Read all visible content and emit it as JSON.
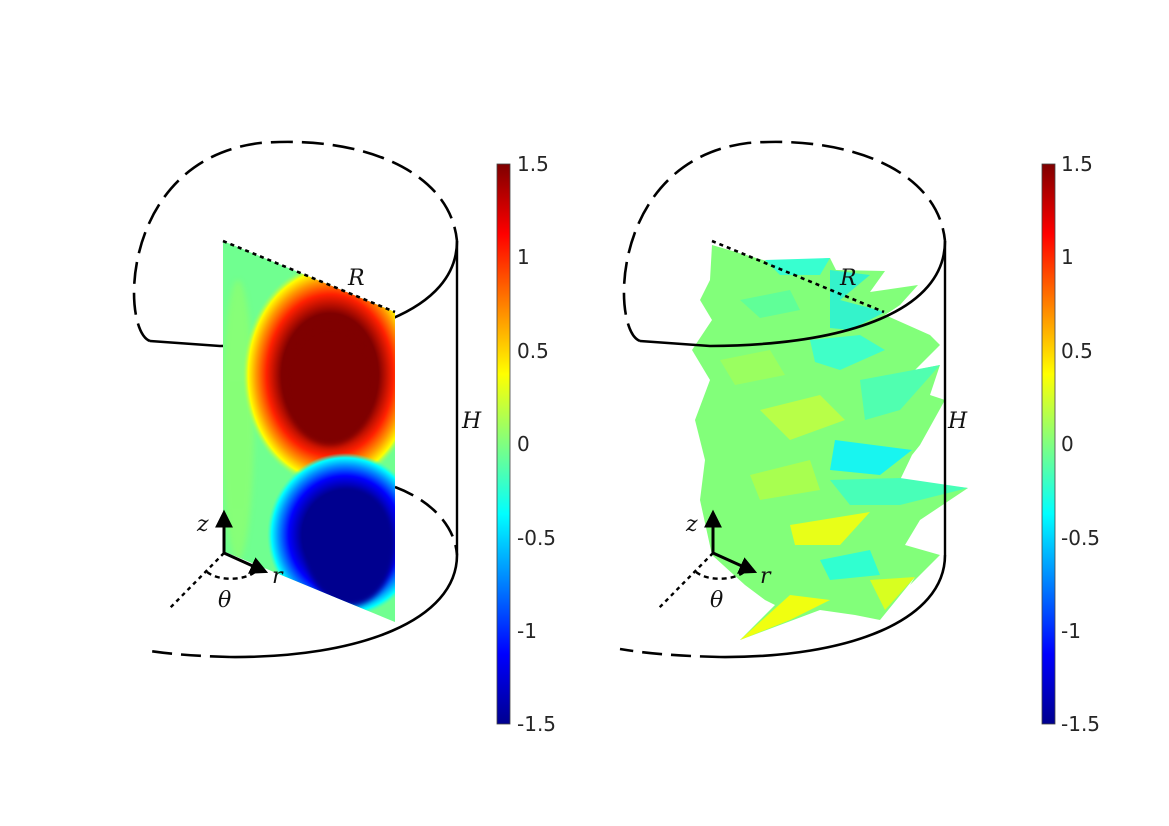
{
  "panels": [
    {
      "id": "left",
      "labels": {
        "R": "R",
        "H": "H",
        "z": "z",
        "r": "r",
        "theta": "θ"
      },
      "colorbar": {
        "ticks": [
          "1.5",
          "1",
          "0.5",
          "0",
          "-0.5",
          "-1",
          "-1.5"
        ],
        "range": [
          -1.5,
          1.5
        ],
        "colormap": "jet"
      }
    },
    {
      "id": "right",
      "labels": {
        "R": "R",
        "H": "H",
        "z": "z",
        "r": "r",
        "theta": "θ"
      },
      "colorbar": {
        "ticks": [
          "1.5",
          "1",
          "0.5",
          "0",
          "-0.5",
          "-1",
          "-1.5"
        ],
        "range": [
          -1.5,
          1.5
        ],
        "colormap": "jet"
      }
    }
  ],
  "colors": {
    "dark-red": "#7f0000",
    "red": "#ff0000",
    "yellow": "#ffff00",
    "green": "#80ff80",
    "cyan": "#00ffff",
    "blue": "#0000ff",
    "dark-blue": "#00008f"
  }
}
